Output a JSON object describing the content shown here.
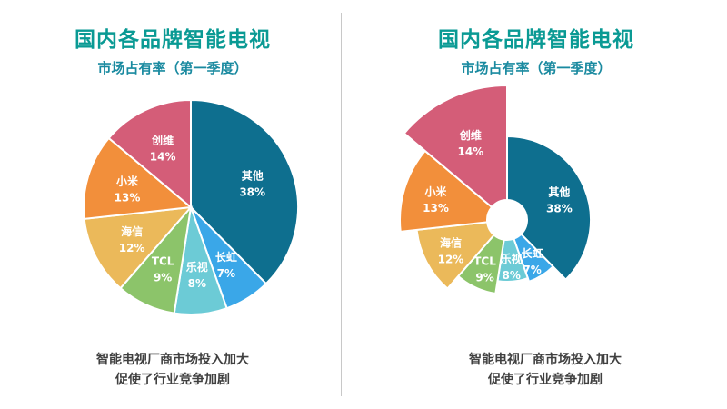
{
  "chart_data": [
    {
      "type": "pie",
      "title": "国内各品牌智能电视",
      "subtitle": "市场占有率（第一季度）",
      "slices": [
        {
          "name": "其他",
          "value": 38,
          "label": "38%",
          "color": "#0e6f8f"
        },
        {
          "name": "长虹",
          "value": 7,
          "label": "7%",
          "color": "#3aa7e8"
        },
        {
          "name": "乐视",
          "value": 8,
          "label": "8%",
          "color": "#6ccbd6"
        },
        {
          "name": "TCL",
          "value": 9,
          "label": "9%",
          "color": "#8cc46a"
        },
        {
          "name": "海信",
          "value": 12,
          "label": "12%",
          "color": "#ebb95a"
        },
        {
          "name": "小米",
          "value": 13,
          "label": "13%",
          "color": "#f28f3b"
        },
        {
          "name": "创维",
          "value": 14,
          "label": "14%",
          "color": "#d45d78"
        }
      ],
      "caption_lines": [
        "智能电视厂商市场投入加大",
        "促使了行业竞争加剧"
      ]
    },
    {
      "type": "pie",
      "title": "国内各品牌智能电视",
      "subtitle": "市场占有率（第一季度）",
      "slices": [
        {
          "name": "其他",
          "value": 38,
          "label": "38%",
          "color": "#0e6f8f"
        },
        {
          "name": "长虹",
          "value": 7,
          "label": "7%",
          "color": "#3aa7e8"
        },
        {
          "name": "乐视",
          "value": 8,
          "label": "8%",
          "color": "#6ccbd6"
        },
        {
          "name": "TCL",
          "value": 9,
          "label": "9%",
          "color": "#8cc46a"
        },
        {
          "name": "海信",
          "value": 12,
          "label": "12%",
          "color": "#ebb95a"
        },
        {
          "name": "小米",
          "value": 13,
          "label": "13%",
          "color": "#f28f3b"
        },
        {
          "name": "创维",
          "value": 14,
          "label": "14%",
          "color": "#d45d78"
        }
      ],
      "caption_lines": [
        "智能电视厂商市场投入加大",
        "促使了行业竞争加剧"
      ]
    }
  ]
}
